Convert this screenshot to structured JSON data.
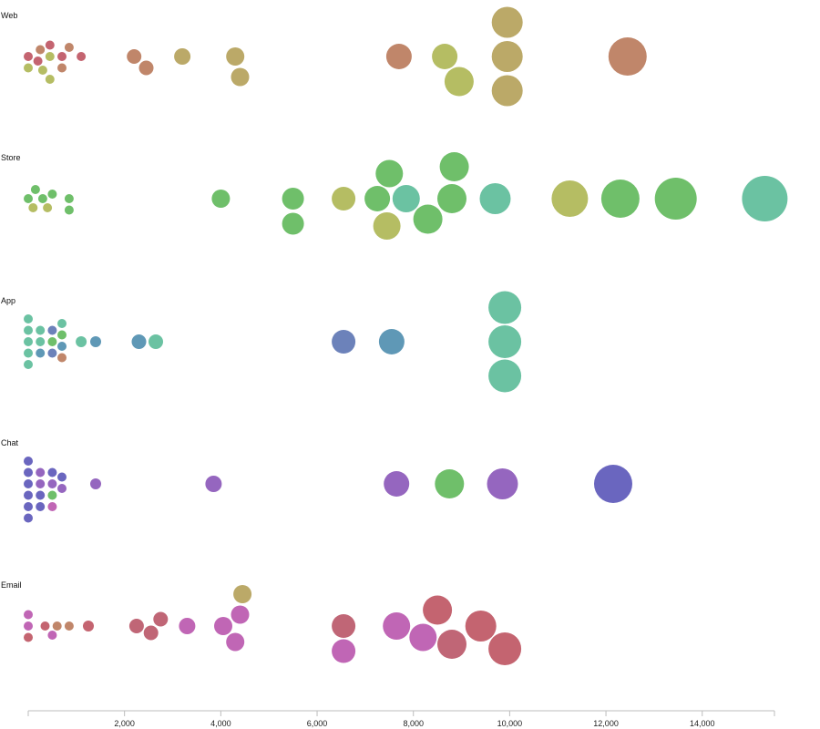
{
  "colors": {
    "brown": "#c0866a",
    "olive": "#bba968",
    "lime": "#b5bd63",
    "green": "#6fbf6a",
    "teal": "#6bc2a2",
    "steel": "#5f98b6",
    "blue": "#6c82ba",
    "indigo": "#6a66bf",
    "purple": "#9566bf",
    "magenta": "#c066b5",
    "rose": "#c06676",
    "red": "#c46470"
  },
  "chart_data": {
    "type": "scatter",
    "subtype": "beeswarm-bubble",
    "title": "",
    "xlabel": "",
    "ylabel": "",
    "xlim": [
      0,
      15500
    ],
    "xticks": [
      2000,
      4000,
      6000,
      8000,
      10000,
      12000,
      14000
    ],
    "xtick_labels": [
      "2,000",
      "4,000",
      "6,000",
      "8,000",
      "10,000",
      "12,000",
      "14,000"
    ],
    "grid": false,
    "rows": [
      {
        "label": "Web",
        "points": [
          {
            "x": 0,
            "r": 5,
            "color": "red"
          },
          {
            "x": 0,
            "r": 5,
            "color": "lime"
          },
          {
            "x": 300,
            "r": 5,
            "color": "lime"
          },
          {
            "x": 250,
            "r": 5,
            "color": "brown"
          },
          {
            "x": 200,
            "r": 5,
            "color": "red"
          },
          {
            "x": 450,
            "r": 5,
            "color": "lime"
          },
          {
            "x": 450,
            "r": 5,
            "color": "red"
          },
          {
            "x": 450,
            "r": 5,
            "color": "lime"
          },
          {
            "x": 700,
            "r": 5,
            "color": "red"
          },
          {
            "x": 700,
            "r": 5,
            "color": "brown"
          },
          {
            "x": 850,
            "r": 5,
            "color": "brown"
          },
          {
            "x": 1100,
            "r": 5,
            "color": "red"
          },
          {
            "x": 2200,
            "r": 8,
            "color": "brown"
          },
          {
            "x": 2450,
            "r": 8,
            "color": "brown"
          },
          {
            "x": 3200,
            "r": 9,
            "color": "olive"
          },
          {
            "x": 4300,
            "r": 10,
            "color": "olive"
          },
          {
            "x": 4400,
            "r": 10,
            "color": "olive"
          },
          {
            "x": 7700,
            "r": 14,
            "color": "brown"
          },
          {
            "x": 8650,
            "r": 14,
            "color": "lime"
          },
          {
            "x": 8950,
            "r": 16,
            "color": "lime"
          },
          {
            "x": 9950,
            "r": 17,
            "color": "olive"
          },
          {
            "x": 9950,
            "r": 17,
            "color": "olive"
          },
          {
            "x": 9950,
            "r": 17,
            "color": "olive"
          },
          {
            "x": 12450,
            "r": 21,
            "color": "brown"
          }
        ]
      },
      {
        "label": "Store",
        "points": [
          {
            "x": 0,
            "r": 5,
            "color": "green"
          },
          {
            "x": 100,
            "r": 5,
            "color": "lime"
          },
          {
            "x": 150,
            "r": 5,
            "color": "green"
          },
          {
            "x": 300,
            "r": 5,
            "color": "green"
          },
          {
            "x": 400,
            "r": 5,
            "color": "lime"
          },
          {
            "x": 500,
            "r": 5,
            "color": "green"
          },
          {
            "x": 850,
            "r": 5,
            "color": "green"
          },
          {
            "x": 850,
            "r": 5,
            "color": "green"
          },
          {
            "x": 4000,
            "r": 10,
            "color": "green"
          },
          {
            "x": 5500,
            "r": 12,
            "color": "green"
          },
          {
            "x": 5500,
            "r": 12,
            "color": "green"
          },
          {
            "x": 6550,
            "r": 13,
            "color": "lime"
          },
          {
            "x": 7250,
            "r": 14,
            "color": "green"
          },
          {
            "x": 7450,
            "r": 15,
            "color": "lime"
          },
          {
            "x": 7500,
            "r": 15,
            "color": "green"
          },
          {
            "x": 7850,
            "r": 15,
            "color": "teal"
          },
          {
            "x": 8300,
            "r": 16,
            "color": "green"
          },
          {
            "x": 8800,
            "r": 16,
            "color": "green"
          },
          {
            "x": 8850,
            "r": 16,
            "color": "green"
          },
          {
            "x": 9700,
            "r": 17,
            "color": "teal"
          },
          {
            "x": 11250,
            "r": 20,
            "color": "lime"
          },
          {
            "x": 12300,
            "r": 21,
            "color": "green"
          },
          {
            "x": 13450,
            "r": 23,
            "color": "green"
          },
          {
            "x": 15300,
            "r": 25,
            "color": "teal"
          }
        ]
      },
      {
        "label": "App",
        "points": [
          {
            "x": 0,
            "r": 5,
            "color": "teal"
          },
          {
            "x": 0,
            "r": 5,
            "color": "teal"
          },
          {
            "x": 0,
            "r": 5,
            "color": "teal"
          },
          {
            "x": 0,
            "r": 5,
            "color": "teal"
          },
          {
            "x": 0,
            "r": 5,
            "color": "teal"
          },
          {
            "x": 250,
            "r": 5,
            "color": "teal"
          },
          {
            "x": 250,
            "r": 5,
            "color": "steel"
          },
          {
            "x": 250,
            "r": 5,
            "color": "teal"
          },
          {
            "x": 500,
            "r": 5,
            "color": "green"
          },
          {
            "x": 500,
            "r": 5,
            "color": "blue"
          },
          {
            "x": 500,
            "r": 5,
            "color": "blue"
          },
          {
            "x": 700,
            "r": 5,
            "color": "steel"
          },
          {
            "x": 700,
            "r": 5,
            "color": "green"
          },
          {
            "x": 700,
            "r": 5,
            "color": "brown"
          },
          {
            "x": 700,
            "r": 5,
            "color": "teal"
          },
          {
            "x": 1100,
            "r": 6,
            "color": "teal"
          },
          {
            "x": 1400,
            "r": 6,
            "color": "steel"
          },
          {
            "x": 2300,
            "r": 8,
            "color": "steel"
          },
          {
            "x": 2650,
            "r": 8,
            "color": "teal"
          },
          {
            "x": 6550,
            "r": 13,
            "color": "blue"
          },
          {
            "x": 7550,
            "r": 14,
            "color": "steel"
          },
          {
            "x": 9900,
            "r": 18,
            "color": "teal"
          },
          {
            "x": 9900,
            "r": 18,
            "color": "teal"
          },
          {
            "x": 9900,
            "r": 18,
            "color": "teal"
          }
        ]
      },
      {
        "label": "Chat",
        "points": [
          {
            "x": 0,
            "r": 5,
            "color": "indigo"
          },
          {
            "x": 0,
            "r": 5,
            "color": "indigo"
          },
          {
            "x": 0,
            "r": 5,
            "color": "indigo"
          },
          {
            "x": 0,
            "r": 5,
            "color": "indigo"
          },
          {
            "x": 0,
            "r": 5,
            "color": "indigo"
          },
          {
            "x": 0,
            "r": 5,
            "color": "indigo"
          },
          {
            "x": 250,
            "r": 5,
            "color": "purple"
          },
          {
            "x": 250,
            "r": 5,
            "color": "indigo"
          },
          {
            "x": 250,
            "r": 5,
            "color": "purple"
          },
          {
            "x": 250,
            "r": 5,
            "color": "indigo"
          },
          {
            "x": 500,
            "r": 5,
            "color": "purple"
          },
          {
            "x": 500,
            "r": 5,
            "color": "green"
          },
          {
            "x": 500,
            "r": 5,
            "color": "indigo"
          },
          {
            "x": 500,
            "r": 5,
            "color": "magenta"
          },
          {
            "x": 700,
            "r": 5,
            "color": "purple"
          },
          {
            "x": 700,
            "r": 5,
            "color": "indigo"
          },
          {
            "x": 1400,
            "r": 6,
            "color": "purple"
          },
          {
            "x": 3850,
            "r": 9,
            "color": "purple"
          },
          {
            "x": 7650,
            "r": 14,
            "color": "purple"
          },
          {
            "x": 8750,
            "r": 16,
            "color": "green"
          },
          {
            "x": 9850,
            "r": 17,
            "color": "purple"
          },
          {
            "x": 12150,
            "r": 21,
            "color": "indigo"
          }
        ]
      },
      {
        "label": "Email",
        "points": [
          {
            "x": 0,
            "r": 5,
            "color": "magenta"
          },
          {
            "x": 0,
            "r": 5,
            "color": "red"
          },
          {
            "x": 0,
            "r": 5,
            "color": "magenta"
          },
          {
            "x": 350,
            "r": 5,
            "color": "red"
          },
          {
            "x": 500,
            "r": 5,
            "color": "magenta"
          },
          {
            "x": 600,
            "r": 5,
            "color": "brown"
          },
          {
            "x": 850,
            "r": 5,
            "color": "brown"
          },
          {
            "x": 1250,
            "r": 6,
            "color": "red"
          },
          {
            "x": 2250,
            "r": 8,
            "color": "rose"
          },
          {
            "x": 2550,
            "r": 8,
            "color": "rose"
          },
          {
            "x": 2750,
            "r": 8,
            "color": "rose"
          },
          {
            "x": 3300,
            "r": 9,
            "color": "magenta"
          },
          {
            "x": 4050,
            "r": 10,
            "color": "magenta"
          },
          {
            "x": 4300,
            "r": 10,
            "color": "magenta"
          },
          {
            "x": 4400,
            "r": 10,
            "color": "magenta"
          },
          {
            "x": 4450,
            "r": 10,
            "color": "olive"
          },
          {
            "x": 6550,
            "r": 13,
            "color": "rose"
          },
          {
            "x": 6550,
            "r": 13,
            "color": "magenta"
          },
          {
            "x": 7650,
            "r": 15,
            "color": "magenta"
          },
          {
            "x": 8200,
            "r": 15,
            "color": "magenta"
          },
          {
            "x": 8500,
            "r": 16,
            "color": "red"
          },
          {
            "x": 8800,
            "r": 16,
            "color": "rose"
          },
          {
            "x": 9400,
            "r": 17,
            "color": "red"
          },
          {
            "x": 9900,
            "r": 18,
            "color": "red"
          }
        ]
      }
    ]
  }
}
